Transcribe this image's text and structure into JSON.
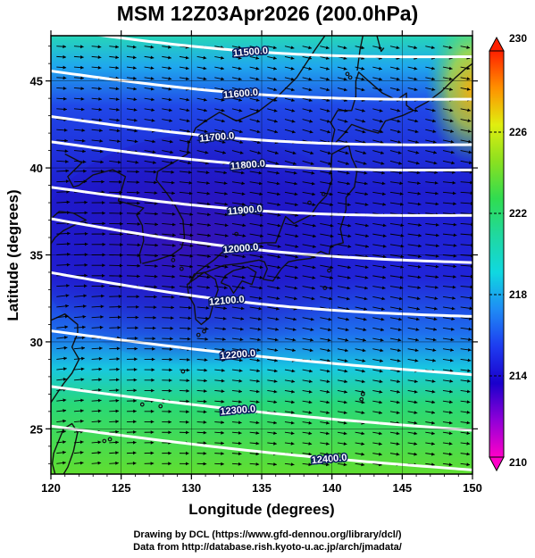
{
  "title": "MSM 12Z03Apr2026 (200.0hPa)",
  "credits": {
    "line1": "Drawing by DCL (https://www.gfd-dennou.org/library/dcl/)",
    "line2": "Data from http://database.rish.kyoto-u.ac.jp/arch/jmadata/"
  },
  "chart_data": {
    "type": "heatmap",
    "title": "MSM 12Z03Apr2026 (200.0hPa)",
    "xlabel": "Longitude (degrees)",
    "ylabel": "Latitude  (degrees)",
    "xlim": [
      120,
      150
    ],
    "ylim": [
      22.4,
      47.6
    ],
    "x_ticks": [
      "120",
      "125",
      "130",
      "135",
      "140",
      "145",
      "150"
    ],
    "y_ticks": [
      "25",
      "30",
      "35",
      "40",
      "45"
    ],
    "grid": true,
    "coastlines": true,
    "wind_vectors": true,
    "colorbar": {
      "min": 210,
      "max": 230,
      "ticks": [
        "230",
        "226",
        "222",
        "218",
        "214",
        "210"
      ],
      "placement": "right",
      "colors": [
        "#ff00c8",
        "#9000d8",
        "#1a00cc",
        "#1e3cf0",
        "#1f8cf5",
        "#10d8e0",
        "#20d8a0",
        "#30dc50",
        "#8ae020",
        "#e0ee10",
        "#ff9000",
        "#ff2000"
      ]
    },
    "contour_labels": [
      {
        "value": "11500.0",
        "lon": 134.2,
        "lat": 46.7
      },
      {
        "value": "11600.0",
        "lon": 133.5,
        "lat": 44.3
      },
      {
        "value": "11700.0",
        "lon": 131.8,
        "lat": 41.8
      },
      {
        "value": "11800.0",
        "lon": 134.0,
        "lat": 40.2
      },
      {
        "value": "11900.0",
        "lon": 133.8,
        "lat": 37.6
      },
      {
        "value": "12000.0",
        "lon": 133.5,
        "lat": 35.4
      },
      {
        "value": "12100.0",
        "lon": 132.5,
        "lat": 32.4
      },
      {
        "value": "12200.0",
        "lon": 133.3,
        "lat": 29.3
      },
      {
        "value": "12300.0",
        "lon": 133.3,
        "lat": 26.1
      },
      {
        "value": "12400.0",
        "lon": 139.8,
        "lat": 23.3
      }
    ]
  }
}
